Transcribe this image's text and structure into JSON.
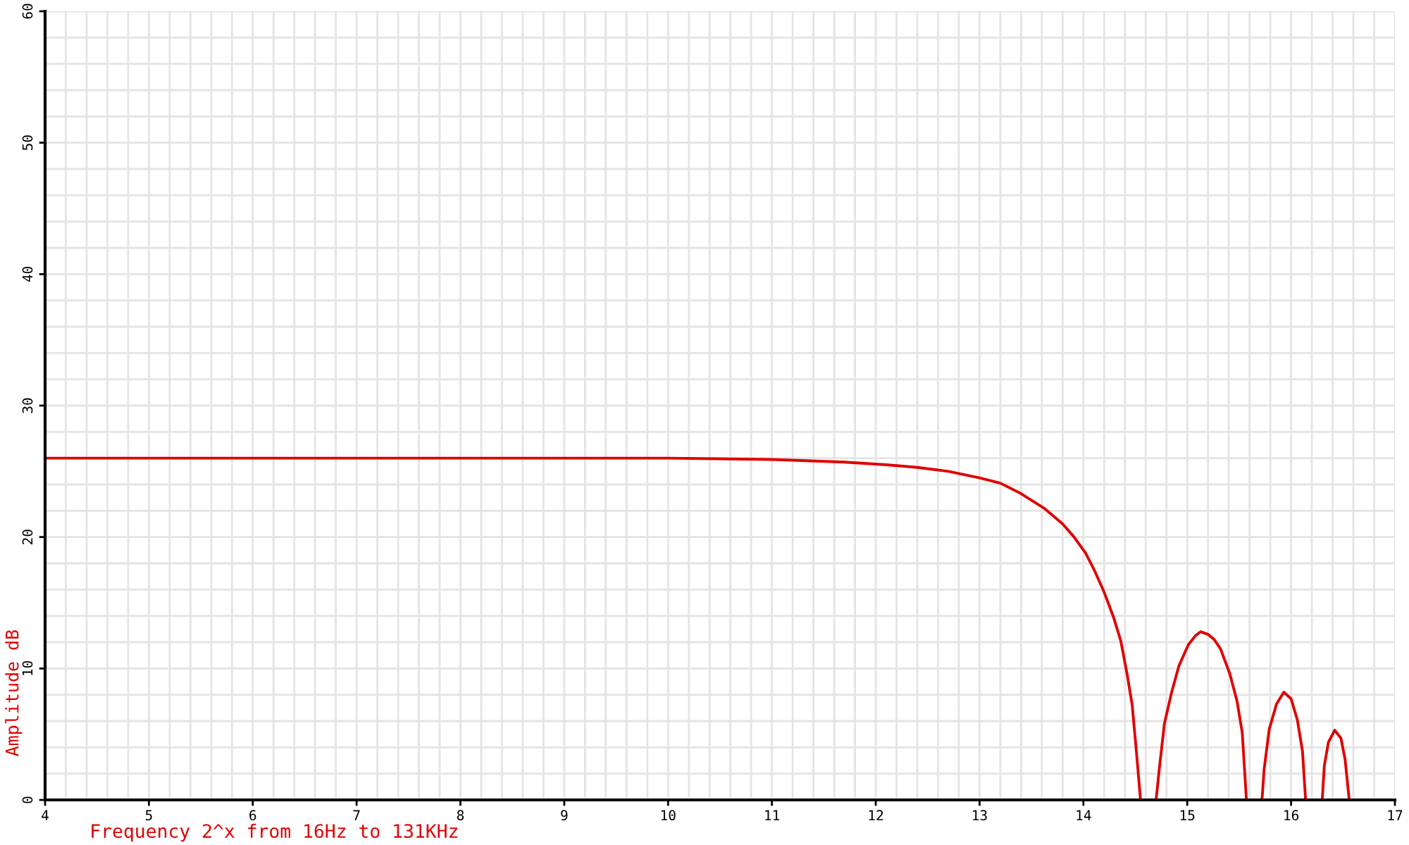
{
  "chart_data": {
    "type": "line",
    "xlabel": "Frequency 2^x from 16Hz to 131KHz",
    "ylabel": "Amplitude dB",
    "xlim": [
      4,
      17
    ],
    "ylim": [
      0,
      60
    ],
    "xticks": [
      4,
      5,
      6,
      7,
      8,
      9,
      10,
      11,
      12,
      13,
      14,
      15,
      16,
      17
    ],
    "yticks": [
      0,
      10,
      20,
      30,
      40,
      50,
      60
    ],
    "grid": true,
    "series": [
      {
        "color": "#e00000",
        "x": [
          4.0,
          10.0,
          11.0,
          11.7,
          12.1,
          12.4,
          12.7,
          13.0,
          13.2,
          13.4,
          13.62,
          13.8,
          13.91,
          14.02,
          14.11,
          14.2,
          14.29,
          14.36,
          14.42,
          14.47,
          14.51,
          14.55,
          14.62,
          14.7,
          14.73,
          14.78,
          14.85,
          14.92,
          15.01,
          15.08,
          15.13,
          15.2,
          15.26,
          15.32,
          15.41,
          15.48,
          15.53,
          15.57,
          15.64,
          15.72,
          15.74,
          15.79,
          15.86,
          15.93,
          16.0,
          16.06,
          16.11,
          16.14,
          16.22,
          16.3,
          16.32,
          16.36,
          16.42,
          16.48,
          16.52,
          16.56
        ],
        "values": [
          26.0,
          26.0,
          25.9,
          25.7,
          25.5,
          25.3,
          25.0,
          24.5,
          24.1,
          23.3,
          22.2,
          21.0,
          20.0,
          18.8,
          17.4,
          15.8,
          13.9,
          12.1,
          9.6,
          7.2,
          3.7,
          0,
          null,
          0,
          2.3,
          5.8,
          8.2,
          10.2,
          11.8,
          12.5,
          12.8,
          12.6,
          12.2,
          11.5,
          9.6,
          7.5,
          5.1,
          0,
          null,
          0,
          2.3,
          5.4,
          7.3,
          8.2,
          7.7,
          6.1,
          3.7,
          0,
          null,
          0,
          2.6,
          4.4,
          5.3,
          4.7,
          3.1,
          0
        ]
      }
    ]
  }
}
